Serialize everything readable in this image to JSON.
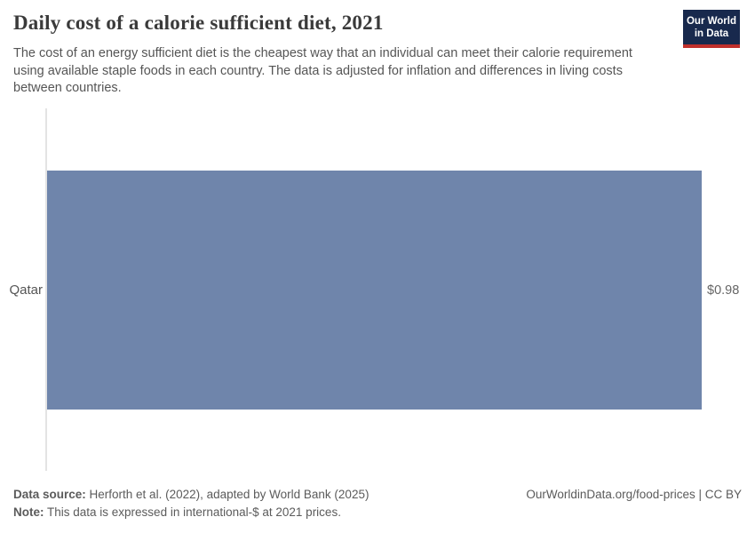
{
  "header": {
    "title": "Daily cost of a calorie sufficient diet, 2021",
    "subtitle": "The cost of an energy sufficient diet is the cheapest way that an individual can meet their calorie requirement using available staple foods in each country. The data is adjusted for inflation and differences in living costs between countries.",
    "logo": {
      "line1": "Our World",
      "line2": "in Data"
    }
  },
  "chart_data": {
    "type": "bar",
    "orientation": "horizontal",
    "title": "Daily cost of a calorie sufficient diet, 2021",
    "categories": [
      "Qatar"
    ],
    "values": [
      0.98
    ],
    "value_labels": [
      "$0.98"
    ],
    "unit": "international-$ per day",
    "xlabel": "",
    "ylabel": "",
    "xlim": [
      0,
      0.98
    ],
    "grid": false,
    "legend": false
  },
  "footer": {
    "data_source_label": "Data source:",
    "data_source_text": " Herforth et al. (2022), adapted by World Bank (2025)",
    "note_label": "Note:",
    "note_text": " This data is expressed in international-$ at 2021 prices.",
    "link_text": "OurWorldinData.org/food-prices | CC BY"
  },
  "colors": {
    "bar": "#6f85ab",
    "logo_navy": "#18294d",
    "logo_red": "#c0302c",
    "axis_line": "#e3e3e3",
    "title_text": "#3a3a3a",
    "subtitle_text": "#555555",
    "entity_label": "#555555",
    "value_label": "#666666",
    "footer_text": "#5b5b5b"
  }
}
